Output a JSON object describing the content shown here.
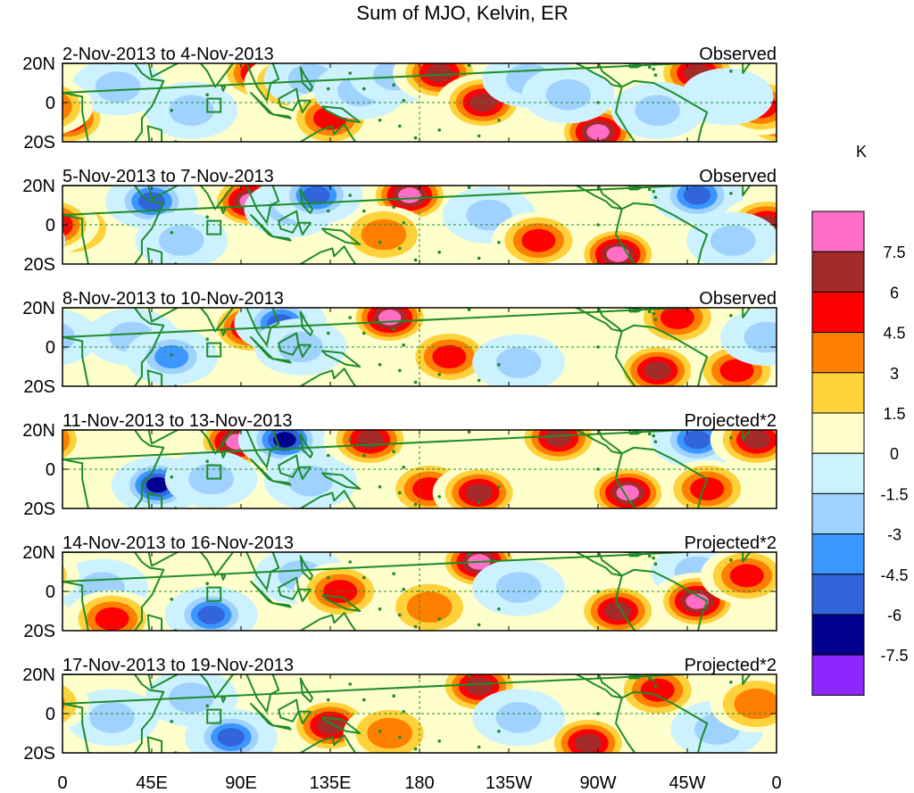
{
  "title": "Sum of MJO, Kelvin, ER",
  "colorbar": {
    "unit": "K",
    "labels": [
      "7.5",
      "6",
      "4.5",
      "3",
      "1.5",
      "0",
      "-1.5",
      "-3",
      "-4.5",
      "-6",
      "-7.5"
    ],
    "colors": [
      "#ff6ec7",
      "#a52a2a",
      "#ff0000",
      "#ff7f00",
      "#ffd23c",
      "#ffffcc",
      "#ccf2ff",
      "#a0d2ff",
      "#3c96ff",
      "#3264dc",
      "#00008c",
      "#8c28ff"
    ]
  },
  "latitude_labels": [
    "20N",
    "0",
    "20S"
  ],
  "longitude_labels": [
    "0",
    "45E",
    "90E",
    "135E",
    "180",
    "135W",
    "90W",
    "45W",
    "0"
  ],
  "panels": [
    {
      "period": "2-Nov-2013 to 4-Nov-2013",
      "type": "Observed"
    },
    {
      "period": "5-Nov-2013 to 7-Nov-2013",
      "type": "Observed"
    },
    {
      "period": "8-Nov-2013 to 10-Nov-2013",
      "type": "Observed"
    },
    {
      "period": "11-Nov-2013 to 13-Nov-2013",
      "type": "Projected*2"
    },
    {
      "period": "14-Nov-2013 to 16-Nov-2013",
      "type": "Projected*2"
    },
    {
      "period": "17-Nov-2013 to 19-Nov-2013",
      "type": "Projected*2"
    }
  ],
  "anomaly_features": [
    [
      {
        "lon": 2,
        "lat": -8,
        "v": 6
      },
      {
        "lon": 28,
        "lat": 8,
        "v": -4
      },
      {
        "lon": 65,
        "lat": -4,
        "v": -3
      },
      {
        "lon": 100,
        "lat": 15,
        "v": 7
      },
      {
        "lon": 115,
        "lat": 10,
        "v": 5
      },
      {
        "lon": 125,
        "lat": 12,
        "v": -4
      },
      {
        "lon": 135,
        "lat": -8,
        "v": 5
      },
      {
        "lon": 150,
        "lat": 6,
        "v": -3
      },
      {
        "lon": 168,
        "lat": 14,
        "v": -4
      },
      {
        "lon": 190,
        "lat": 15,
        "v": 6
      },
      {
        "lon": 212,
        "lat": 0,
        "v": 6
      },
      {
        "lon": 235,
        "lat": 12,
        "v": -3
      },
      {
        "lon": 270,
        "lat": -15,
        "v": 8
      },
      {
        "lon": 255,
        "lat": 4,
        "v": -4
      },
      {
        "lon": 320,
        "lat": 15,
        "v": 7
      },
      {
        "lon": 300,
        "lat": -4,
        "v": -4
      },
      {
        "lon": 352,
        "lat": -2,
        "v": 5
      },
      {
        "lon": 335,
        "lat": 3,
        "v": -2
      }
    ],
    [
      {
        "lon": 5,
        "lat": -2,
        "v": 5
      },
      {
        "lon": 45,
        "lat": 12,
        "v": -6
      },
      {
        "lon": 60,
        "lat": -8,
        "v": -4
      },
      {
        "lon": 95,
        "lat": 12,
        "v": 8
      },
      {
        "lon": 115,
        "lat": 8,
        "v": -4
      },
      {
        "lon": 128,
        "lat": 15,
        "v": -6
      },
      {
        "lon": 175,
        "lat": 15,
        "v": 8
      },
      {
        "lon": 162,
        "lat": -5,
        "v": 4
      },
      {
        "lon": 215,
        "lat": 5,
        "v": -4
      },
      {
        "lon": 240,
        "lat": -8,
        "v": 5
      },
      {
        "lon": 280,
        "lat": -15,
        "v": 8
      },
      {
        "lon": 320,
        "lat": 15,
        "v": -7
      },
      {
        "lon": 355,
        "lat": 0,
        "v": 6
      },
      {
        "lon": 338,
        "lat": -8,
        "v": -3
      }
    ],
    [
      {
        "lon": 35,
        "lat": 5,
        "v": -4
      },
      {
        "lon": 55,
        "lat": -5,
        "v": -5
      },
      {
        "lon": 95,
        "lat": 10,
        "v": 6
      },
      {
        "lon": 110,
        "lat": 12,
        "v": -7
      },
      {
        "lon": 120,
        "lat": 0,
        "v": -4
      },
      {
        "lon": 165,
        "lat": 15,
        "v": 8
      },
      {
        "lon": 195,
        "lat": -5,
        "v": 5
      },
      {
        "lon": 230,
        "lat": -8,
        "v": -4
      },
      {
        "lon": 310,
        "lat": 15,
        "v": 5
      },
      {
        "lon": 300,
        "lat": -12,
        "v": 6
      },
      {
        "lon": 340,
        "lat": -12,
        "v": 5
      },
      {
        "lon": 355,
        "lat": 5,
        "v": -3
      }
    ],
    [
      {
        "lon": 48,
        "lat": -8,
        "v": -9
      },
      {
        "lon": 88,
        "lat": 14,
        "v": 8
      },
      {
        "lon": 112,
        "lat": 15,
        "v": -8
      },
      {
        "lon": 125,
        "lat": -6,
        "v": -4
      },
      {
        "lon": 155,
        "lat": 15,
        "v": 6
      },
      {
        "lon": 185,
        "lat": -10,
        "v": 5
      },
      {
        "lon": 210,
        "lat": -12,
        "v": 7
      },
      {
        "lon": 250,
        "lat": 16,
        "v": 7
      },
      {
        "lon": 285,
        "lat": -12,
        "v": 8
      },
      {
        "lon": 320,
        "lat": 15,
        "v": -7
      },
      {
        "lon": 350,
        "lat": 15,
        "v": 6
      },
      {
        "lon": 325,
        "lat": -10,
        "v": 5
      },
      {
        "lon": 75,
        "lat": -5,
        "v": -4
      }
    ],
    [
      {
        "lon": 20,
        "lat": 2,
        "v": -3
      },
      {
        "lon": 25,
        "lat": -14,
        "v": 5
      },
      {
        "lon": 75,
        "lat": -12,
        "v": -6
      },
      {
        "lon": 120,
        "lat": 8,
        "v": -4
      },
      {
        "lon": 140,
        "lat": 0,
        "v": 5
      },
      {
        "lon": 210,
        "lat": 15,
        "v": 8
      },
      {
        "lon": 185,
        "lat": -8,
        "v": 4
      },
      {
        "lon": 230,
        "lat": 2,
        "v": -3
      },
      {
        "lon": 280,
        "lat": -10,
        "v": 6
      },
      {
        "lon": 320,
        "lat": 10,
        "v": -4
      },
      {
        "lon": 320,
        "lat": -5,
        "v": 8
      },
      {
        "lon": 345,
        "lat": 8,
        "v": 5
      }
    ],
    [
      {
        "lon": 25,
        "lat": -2,
        "v": -4
      },
      {
        "lon": 65,
        "lat": 8,
        "v": -4
      },
      {
        "lon": 85,
        "lat": -12,
        "v": -7
      },
      {
        "lon": 135,
        "lat": -6,
        "v": 7
      },
      {
        "lon": 165,
        "lat": -10,
        "v": 4
      },
      {
        "lon": 210,
        "lat": 14,
        "v": 6
      },
      {
        "lon": 265,
        "lat": -15,
        "v": 6
      },
      {
        "lon": 300,
        "lat": 12,
        "v": 5
      },
      {
        "lon": 330,
        "lat": -8,
        "v": -4
      },
      {
        "lon": 350,
        "lat": 5,
        "v": 4
      },
      {
        "lon": 230,
        "lat": -2,
        "v": -3
      }
    ]
  ]
}
